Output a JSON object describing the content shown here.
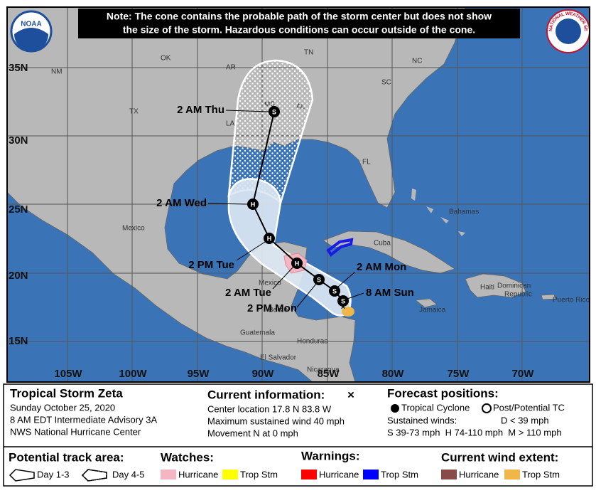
{
  "header": {
    "note": [
      "Note: The cone contains the probable path of the storm center but does not show",
      "the size of the storm. Hazardous conditions can occur outside of the cone."
    ],
    "noaa_logo": "NOAA",
    "nws_logo": "NATIONAL WEATHER SERVICE"
  },
  "map": {
    "lat_labels": [
      "35N",
      "30N",
      "25N",
      "20N",
      "15N"
    ],
    "lon_labels": [
      "105W",
      "100W",
      "95W",
      "90W",
      "85W",
      "80W",
      "75W",
      "70W"
    ],
    "place_labels": [
      "NM",
      "OK",
      "AR",
      "TN",
      "NC",
      "SC",
      "TX",
      "MS",
      "AL",
      "LA",
      "FL",
      "Bahamas",
      "Cuba",
      "Mexico",
      "Mexico",
      "Belize",
      "Jamaica",
      "Haiti",
      "Dominican",
      "Republic",
      "Puerto Rico",
      "Guatemala",
      "Honduras",
      "El Salvador",
      "Nicaragua"
    ],
    "forecast_points": [
      {
        "label": "2 AM Thu",
        "symbol": "S"
      },
      {
        "label": "2 AM Wed",
        "symbol": "H"
      },
      {
        "label": "2 PM Tue",
        "symbol": "H"
      },
      {
        "label": "2 AM Tue",
        "symbol": "H"
      },
      {
        "label": "2 PM Mon",
        "symbol": "S"
      },
      {
        "label": "2 AM Mon",
        "symbol": "S"
      },
      {
        "label": "8 AM Sun",
        "symbol": "S"
      }
    ]
  },
  "legend": {
    "storm": {
      "name": "Tropical Storm Zeta",
      "date": "Sunday October 25, 2020",
      "advisory": "8 AM EDT Intermediate Advisory 3A",
      "center": "NWS National Hurricane Center"
    },
    "current": {
      "title": "Current information:",
      "marker": "×",
      "location": "Center location 17.8 N 83.8 W",
      "wind": "Maximum sustained wind 40 mph",
      "movement": "Movement N at 0 mph"
    },
    "forecast": {
      "title": "Forecast positions:",
      "tropical": "Tropical Cyclone",
      "post": "Post/Potential TC",
      "winds_title": "Sustained winds:",
      "d": "D < 39 mph",
      "categories": "S 39-73 mph  H 74-110 mph  M > 110 mph"
    },
    "track": {
      "title": "Potential track area:",
      "day13": "Day 1-3",
      "day45": "Day 4-5"
    },
    "watches": {
      "title": "Watches:",
      "hurricane": "Hurricane",
      "trop": "Trop Stm"
    },
    "warnings": {
      "title": "Warnings:",
      "hurricane": "Hurricane",
      "trop": "Trop Stm"
    },
    "wind_extent": {
      "title": "Current wind extent:",
      "hurricane": "Hurricane",
      "trop": "Trop Stm"
    }
  }
}
